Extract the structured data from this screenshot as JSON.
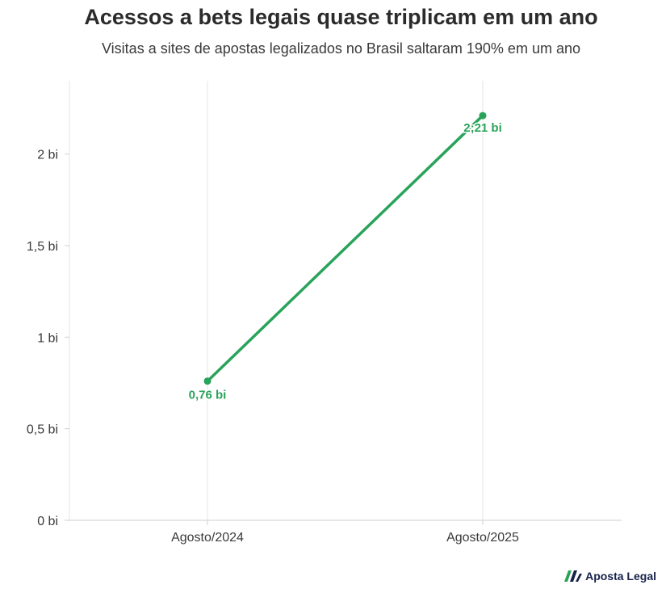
{
  "title": "Acessos a bets legais quase triplicam em um ano",
  "subtitle": "Visitas a sites de apostas legalizados no Brasil saltaram 190% em um ano",
  "brand": {
    "name": "Aposta Legal",
    "icon": "aposta-legal-logo-icon"
  },
  "colors": {
    "line": "#2aa35a",
    "grid": "#e6e6e6",
    "axis": "#cfcfcf",
    "text": "#3a3a3a",
    "brand": "#17214a"
  },
  "chart_data": {
    "type": "line",
    "categories": [
      "Agosto/2024",
      "Agosto/2025"
    ],
    "series": [
      {
        "values": [
          0.76,
          2.21
        ],
        "labels": [
          "0,76 bi",
          "2;21 bi"
        ]
      }
    ],
    "y_ticks": [
      0,
      0.5,
      1,
      1.5,
      2
    ],
    "y_tick_labels": [
      "0 bi",
      "0,5 bi",
      "1 bi",
      "1,5 bi",
      "2 bi"
    ],
    "ylim": [
      0,
      2.4
    ],
    "grid": "vertical",
    "legend": "none"
  }
}
